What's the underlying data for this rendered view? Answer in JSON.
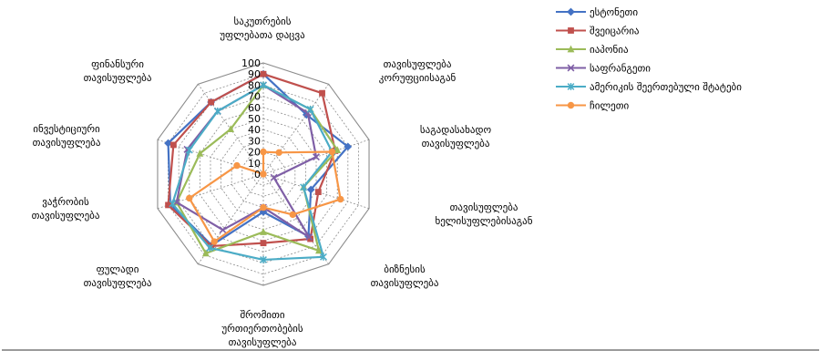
{
  "chart_data": {
    "type": "radar",
    "title": "",
    "categories": [
      [
        "საკუთრების",
        "უფლებათა დაცვა"
      ],
      [
        "თავისუფლება",
        "კორუფციისაგან"
      ],
      [
        "საგადასახადო",
        "თავისუფლება"
      ],
      [
        "თავისუფლება",
        "ხელისუფლებისაგან"
      ],
      [
        "ბიზნესის",
        "თავისუფლება"
      ],
      [
        "შრომითი",
        "ურთიერთობების",
        "თავისუფლება"
      ],
      [
        "ფულადი",
        "თავისუფლება"
      ],
      [
        "ვაჭრობის",
        "თავისუფლება"
      ],
      [
        "ინვესტიციური",
        "თავისუფლება"
      ],
      [
        "ფინანსური",
        "თავისუფლება"
      ]
    ],
    "rlim": [
      0,
      100
    ],
    "ticks": [
      "0",
      "10",
      "20",
      "30",
      "40",
      "50",
      "60",
      "70",
      "80",
      "90",
      "100"
    ],
    "grid": true,
    "legend_position": "top-right",
    "series": [
      {
        "name": "ესტონეთი",
        "color": "#4472C4",
        "marker": "diamond",
        "values": [
          90,
          66,
          80,
          45,
          69,
          34,
          79,
          88,
          90,
          80
        ]
      },
      {
        "name": "შვეიცარია",
        "color": "#C0504D",
        "marker": "square",
        "values": [
          90,
          90,
          68,
          52,
          72,
          62,
          80,
          90,
          85,
          80
        ]
      },
      {
        "name": "იაპონია",
        "color": "#9BBB59",
        "marker": "triangle",
        "values": [
          80,
          72,
          70,
          38,
          85,
          52,
          88,
          82,
          60,
          50
        ]
      },
      {
        "name": "საფრანგეთი",
        "color": "#7F5FA6",
        "marker": "x",
        "values": [
          80,
          68,
          50,
          10,
          70,
          30,
          62,
          82,
          72,
          70
        ]
      },
      {
        "name": "ამერიკის შეერთებული შტატები",
        "color": "#4BACC6",
        "marker": "star",
        "values": [
          80,
          72,
          65,
          38,
          92,
          77,
          82,
          86,
          70,
          70
        ]
      },
      {
        "name": "ჩილეთი",
        "color": "#F79646",
        "marker": "circle",
        "values": [
          20,
          24,
          65,
          73,
          45,
          30,
          75,
          70,
          25,
          0
        ]
      }
    ]
  }
}
